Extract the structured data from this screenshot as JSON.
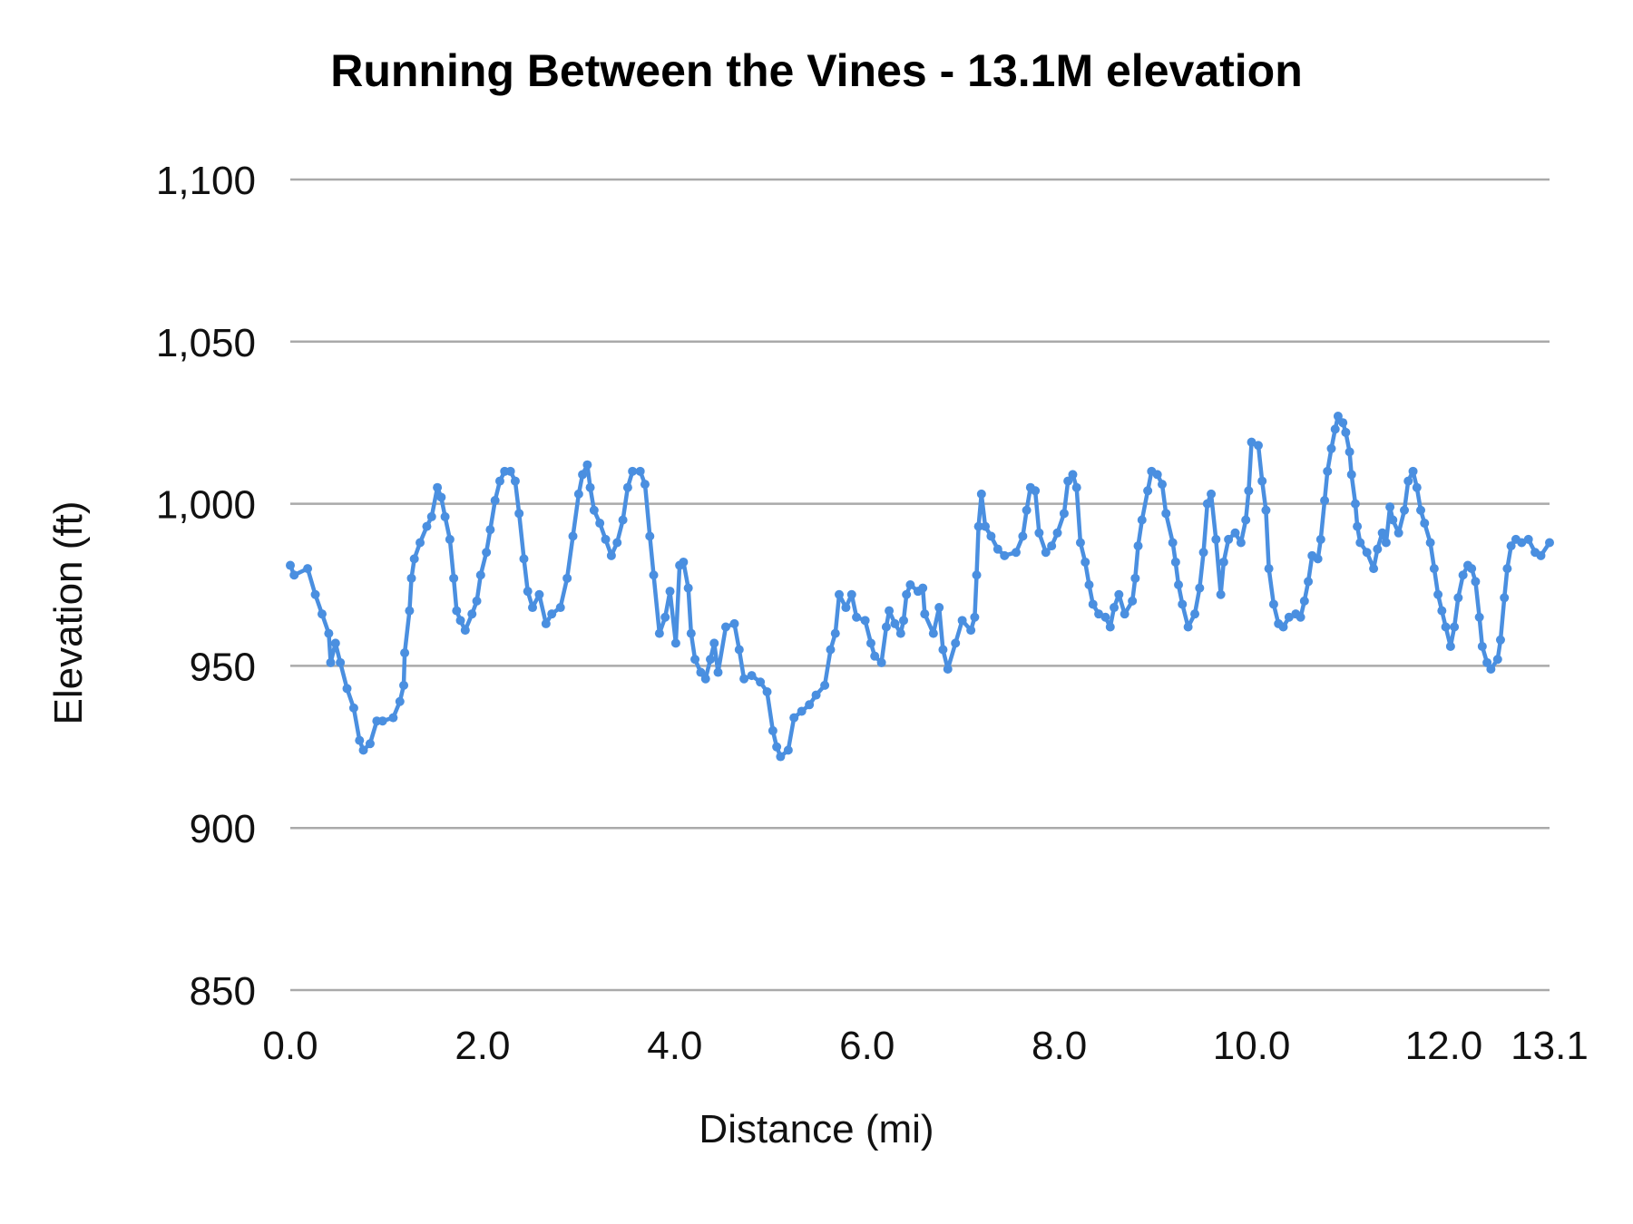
{
  "chart_data": {
    "type": "line",
    "title": "Running Between the Vines - 13.1M elevation",
    "xlabel": "Distance (mi)",
    "ylabel": "Elevation (ft)",
    "xlim": [
      0,
      13.1
    ],
    "ylim": [
      850,
      1100
    ],
    "x_ticks": [
      "0.0",
      "2.0",
      "4.0",
      "6.0",
      "8.0",
      "10.0",
      "12.0",
      "13.1"
    ],
    "x_tick_values": [
      0,
      2,
      4,
      6,
      8,
      10,
      12,
      13.1
    ],
    "y_ticks": [
      "850",
      "900",
      "950",
      "1,000",
      "1,050",
      "1,100"
    ],
    "y_tick_values": [
      850,
      900,
      950,
      1000,
      1050,
      1100
    ],
    "grid": "horizontal",
    "legend": "none",
    "markers": true,
    "colors": {
      "line": "#4a8fe0",
      "grid": "#aaaaaa",
      "text": "#111111"
    },
    "series": [
      {
        "x": [
          0.0,
          0.04,
          0.18,
          0.26,
          0.33,
          0.4,
          0.42,
          0.47,
          0.52,
          0.59,
          0.66,
          0.72,
          0.76,
          0.83,
          0.9,
          0.96,
          1.07,
          1.14,
          1.18,
          1.19,
          1.24,
          1.26,
          1.29,
          1.35,
          1.42,
          1.47,
          1.53,
          1.57,
          1.61,
          1.66,
          1.7,
          1.73,
          1.77,
          1.82,
          1.89,
          1.94,
          1.98,
          2.04,
          2.08,
          2.13,
          2.18,
          2.23,
          2.29,
          2.34,
          2.38,
          2.43,
          2.47,
          2.52,
          2.59,
          2.66,
          2.72,
          2.81,
          2.88,
          2.94,
          3.0,
          3.04,
          3.09,
          3.12,
          3.16,
          3.22,
          3.28,
          3.34,
          3.4,
          3.46,
          3.51,
          3.56,
          3.64,
          3.69,
          3.74,
          3.78,
          3.84,
          3.9,
          3.95,
          4.01,
          4.05,
          4.09,
          4.14,
          4.17,
          4.21,
          4.27,
          4.32,
          4.37,
          4.41,
          4.45,
          4.53,
          4.62,
          4.67,
          4.72,
          4.8,
          4.89,
          4.96,
          5.02,
          5.06,
          5.1,
          5.18,
          5.24,
          5.32,
          5.4,
          5.47,
          5.56,
          5.62,
          5.67,
          5.71,
          5.78,
          5.84,
          5.89,
          5.98,
          6.04,
          6.08,
          6.15,
          6.2,
          6.23,
          6.29,
          6.35,
          6.38,
          6.41,
          6.45,
          6.53,
          6.58,
          6.6,
          6.69,
          6.75,
          6.79,
          6.84,
          6.92,
          6.99,
          7.08,
          7.12,
          7.14,
          7.16,
          7.19,
          7.23,
          7.29,
          7.36,
          7.43,
          7.55,
          7.62,
          7.66,
          7.7,
          7.75,
          7.79,
          7.86,
          7.92,
          7.98,
          8.05,
          8.09,
          8.14,
          8.18,
          8.22,
          8.27,
          8.31,
          8.35,
          8.41,
          8.48,
          8.53,
          8.57,
          8.62,
          8.68,
          8.76,
          8.79,
          8.82,
          8.86,
          8.92,
          8.96,
          9.02,
          9.07,
          9.11,
          9.18,
          9.21,
          9.24,
          9.28,
          9.34,
          9.41,
          9.46,
          9.5,
          9.54,
          9.58,
          9.63,
          9.68,
          9.71,
          9.76,
          9.83,
          9.89,
          9.94,
          9.97,
          10.0,
          10.07,
          10.11,
          10.15,
          10.18,
          10.23,
          10.28,
          10.33,
          10.39,
          10.46,
          10.51,
          10.55,
          10.59,
          10.63,
          10.69,
          10.72,
          10.76,
          10.79,
          10.83,
          10.87,
          10.9,
          10.95,
          10.98,
          11.02,
          11.04,
          11.08,
          11.1,
          11.13,
          11.2,
          11.27,
          11.31,
          11.36,
          11.4,
          11.44,
          11.47,
          11.53,
          11.59,
          11.63,
          11.68,
          11.72,
          11.76,
          11.8,
          11.86,
          11.9,
          11.94,
          11.98,
          12.02,
          12.07,
          12.11,
          12.15,
          12.2,
          12.25,
          12.29,
          12.33,
          12.37,
          12.4,
          12.45,
          12.49,
          12.56,
          12.59,
          12.63,
          12.66,
          12.7,
          12.75,
          12.81,
          12.88,
          12.95,
          13.01,
          13.1
        ],
        "y": [
          981,
          978,
          980,
          972,
          966,
          960,
          951,
          957,
          951,
          943,
          937,
          927,
          924,
          926,
          933,
          933,
          934,
          939,
          944,
          954,
          967,
          977,
          983,
          988,
          993,
          996,
          1005,
          1002,
          996,
          989,
          977,
          967,
          964,
          961,
          966,
          970,
          978,
          985,
          992,
          1001,
          1007,
          1010,
          1010,
          1007,
          997,
          983,
          973,
          968,
          972,
          963,
          966,
          968,
          977,
          990,
          1003,
          1009,
          1012,
          1005,
          998,
          994,
          989,
          984,
          988,
          995,
          1005,
          1010,
          1010,
          1006,
          990,
          978,
          960,
          965,
          973,
          957,
          981,
          982,
          974,
          960,
          952,
          948,
          946,
          952,
          957,
          948,
          962,
          963,
          955,
          946,
          947,
          945,
          942,
          930,
          925,
          922,
          924,
          934,
          936,
          938,
          941,
          944,
          955,
          960,
          972,
          968,
          972,
          965,
          964,
          957,
          953,
          951,
          962,
          967,
          963,
          960,
          964,
          972,
          975,
          973,
          974,
          966,
          960,
          968,
          955,
          949,
          957,
          964,
          961,
          965,
          978,
          993,
          1003,
          993,
          990,
          986,
          984,
          985,
          990,
          998,
          1005,
          1004,
          991,
          985,
          987,
          991,
          997,
          1007,
          1009,
          1005,
          988,
          982,
          975,
          969,
          966,
          965,
          962,
          968,
          972,
          966,
          970,
          977,
          987,
          995,
          1004,
          1010,
          1009,
          1006,
          997,
          988,
          982,
          975,
          969,
          962,
          966,
          974,
          985,
          1000,
          1003,
          989,
          972,
          982,
          989,
          991,
          988,
          995,
          1004,
          1019,
          1018,
          1007,
          998,
          980,
          969,
          963,
          962,
          965,
          966,
          965,
          970,
          976,
          984,
          983,
          989,
          1001,
          1010,
          1017,
          1023,
          1027,
          1025,
          1022,
          1016,
          1009,
          1000,
          993,
          988,
          985,
          980,
          986,
          991,
          988,
          999,
          995,
          991,
          998,
          1007,
          1010,
          1005,
          998,
          994,
          988,
          980,
          972,
          967,
          962,
          956,
          962,
          971,
          978,
          981,
          980,
          976,
          965,
          956,
          951,
          949,
          952,
          958,
          971,
          980,
          987,
          989,
          988,
          989,
          985,
          984,
          988
        ]
      }
    ]
  }
}
